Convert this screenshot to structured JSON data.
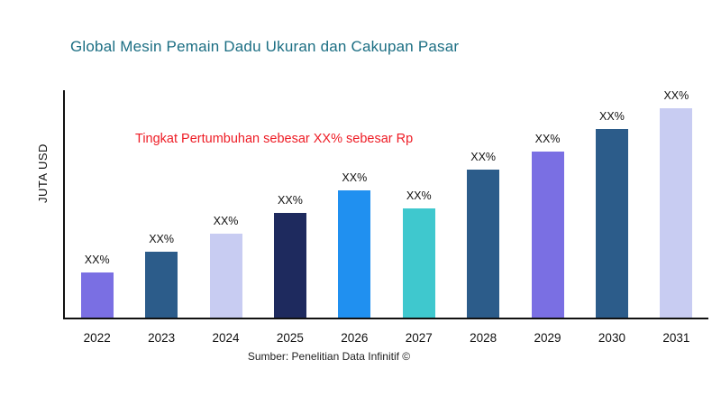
{
  "title": "Global Mesin Pemain Dadu Ukuran dan Cakupan Pasar",
  "annotation": "Tingkat Pertumbuhan sebesar XX% sebesar Rp",
  "source": "Sumber: Penelitian Data Infinitif ©",
  "colors": {
    "title": "#1b6e83",
    "annotation": "#ee1c25",
    "axis": "#111111"
  },
  "chart_data": {
    "type": "bar",
    "title": "Global Mesin Pemain Dadu Ukuran dan Cakupan Pasar",
    "xlabel": "",
    "ylabel": "JUTA USD",
    "ylim": [
      0,
      100
    ],
    "grid": false,
    "legend": "none",
    "categories": [
      "2022",
      "2023",
      "2024",
      "2025",
      "2026",
      "2027",
      "2028",
      "2029",
      "2030",
      "2031"
    ],
    "values": [
      20,
      29,
      37,
      46,
      56,
      48,
      65,
      73,
      83,
      92
    ],
    "bar_labels": [
      "XX%",
      "XX%",
      "XX%",
      "XX%",
      "XX%",
      "XX%",
      "XX%",
      "XX%",
      "XX%",
      "XX%"
    ],
    "bar_colors": [
      "#7a6fe3",
      "#2c5c8a",
      "#c8ccf2",
      "#1e2a5e",
      "#2090f0",
      "#3fc8ce",
      "#2c5c8a",
      "#7a6fe3",
      "#2c5c8a",
      "#c8ccf2"
    ]
  }
}
